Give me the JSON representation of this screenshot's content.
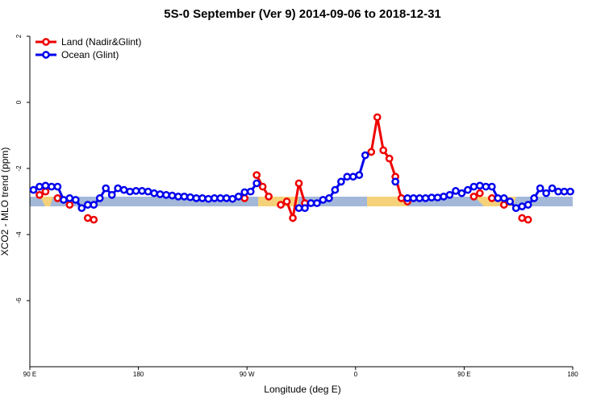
{
  "chart_data": {
    "type": "line",
    "title": "5S-0 September (Ver 9)   2014-09-06 to 2018-12-31",
    "x_label": "Longitude (deg E)",
    "y_label": "XCO2 - MLO trend (ppm)",
    "xlim": [
      90,
      540
    ],
    "xticks": [
      {
        "value": 90,
        "label": "90 E"
      },
      {
        "value": 180,
        "label": "180"
      },
      {
        "value": 270,
        "label": "90 W"
      },
      {
        "value": 360,
        "label": "0"
      },
      {
        "value": 450,
        "label": "90 E"
      },
      {
        "value": 540,
        "label": "180"
      }
    ],
    "ylim": [
      -8,
      2
    ],
    "yticks": [
      2,
      0,
      -2,
      -4,
      -6
    ],
    "legend": "top-left",
    "x": [
      93,
      98,
      103,
      108,
      113,
      118,
      123,
      128,
      133,
      138,
      143,
      148,
      153,
      158,
      163,
      168,
      173,
      178,
      183,
      188,
      193,
      198,
      203,
      208,
      213,
      218,
      223,
      228,
      233,
      238,
      243,
      248,
      253,
      258,
      263,
      268,
      273,
      278,
      283,
      288,
      293,
      298,
      303,
      308,
      313,
      318,
      323,
      328,
      333,
      338,
      343,
      348,
      353,
      358,
      363,
      368,
      373,
      378,
      383,
      388,
      393,
      398,
      403,
      408,
      413,
      418,
      423,
      428,
      433,
      438,
      443,
      448,
      453,
      458,
      463,
      468,
      473,
      478,
      483,
      488,
      493,
      498,
      503,
      508,
      513,
      518,
      523,
      528,
      533,
      538
    ],
    "series": [
      {
        "name": "Land (Nadir&Glint)",
        "color": "#ee0000",
        "values": [
          null,
          -2.8,
          -2.7,
          null,
          -2.9,
          null,
          -3.1,
          null,
          null,
          -3.5,
          -3.55,
          null,
          null,
          null,
          null,
          null,
          null,
          null,
          null,
          null,
          null,
          null,
          null,
          null,
          null,
          null,
          null,
          null,
          null,
          null,
          null,
          null,
          null,
          null,
          null,
          -2.9,
          null,
          -2.2,
          -2.55,
          -2.85,
          null,
          -3.1,
          -3.0,
          -3.5,
          -2.45,
          -3.05,
          null,
          null,
          null,
          null,
          null,
          null,
          null,
          null,
          null,
          null,
          -1.5,
          -0.45,
          -1.45,
          -1.7,
          -2.25,
          -2.9,
          -3.0,
          null,
          null,
          null,
          null,
          null,
          null,
          null,
          null,
          null,
          null,
          -2.85,
          -2.75,
          null,
          -2.9,
          null,
          -3.1,
          null,
          null,
          -3.5,
          -3.55,
          null,
          null,
          null,
          null,
          null,
          null,
          null
        ]
      },
      {
        "name": "Ocean (Glint)",
        "color": "#0000ee",
        "values": [
          -2.65,
          -2.55,
          -2.52,
          -2.55,
          -2.55,
          -2.95,
          -2.9,
          -2.95,
          -3.2,
          -3.1,
          -3.1,
          -2.9,
          -2.6,
          -2.8,
          -2.6,
          -2.65,
          -2.7,
          -2.68,
          -2.68,
          -2.7,
          -2.75,
          -2.78,
          -2.8,
          -2.82,
          -2.85,
          -2.85,
          -2.87,
          -2.9,
          -2.9,
          -2.92,
          -2.9,
          -2.9,
          -2.9,
          -2.92,
          -2.85,
          -2.72,
          -2.7,
          -2.45,
          null,
          null,
          null,
          null,
          null,
          null,
          -3.2,
          -3.2,
          -3.05,
          -3.05,
          -2.95,
          -2.9,
          -2.65,
          -2.4,
          -2.25,
          -2.25,
          -2.2,
          -1.6,
          null,
          null,
          null,
          null,
          -2.4,
          null,
          -2.9,
          -2.9,
          -2.9,
          -2.9,
          -2.88,
          -2.88,
          -2.85,
          -2.8,
          -2.68,
          -2.75,
          -2.65,
          -2.55,
          -2.52,
          -2.55,
          -2.55,
          -2.9,
          -2.9,
          -3.0,
          -3.2,
          -3.15,
          -3.1,
          -2.9,
          -2.6,
          -2.75,
          -2.6,
          -2.7,
          -2.7,
          -2.7
        ]
      }
    ]
  }
}
